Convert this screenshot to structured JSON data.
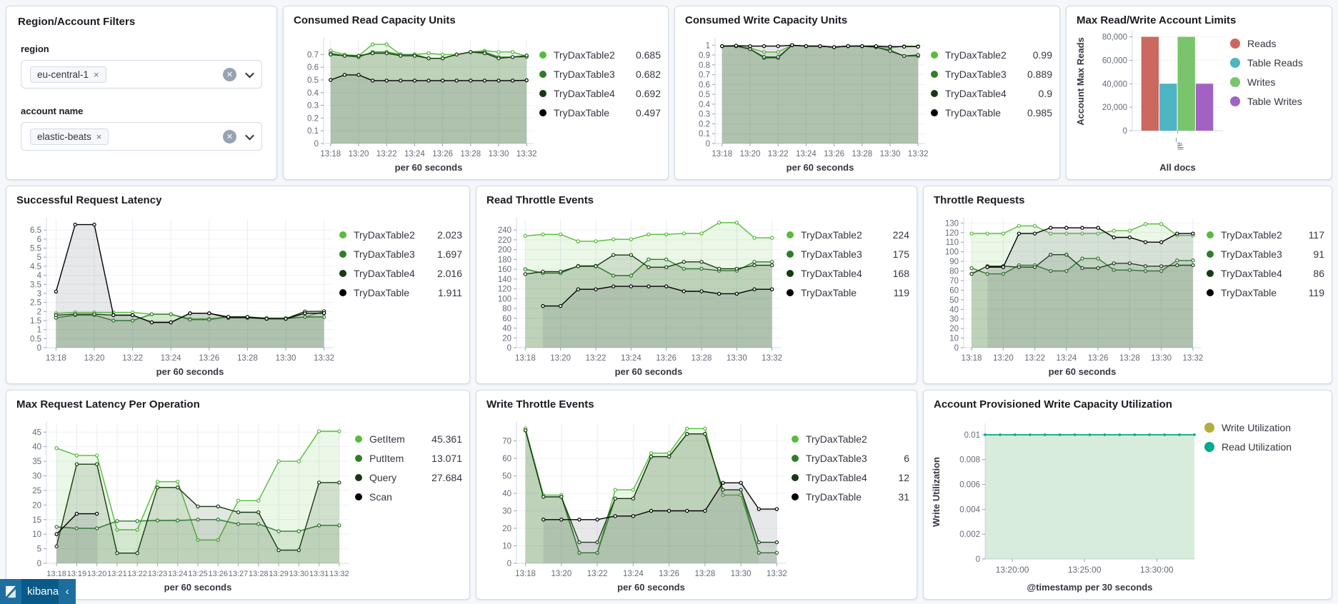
{
  "app": {
    "brand": "kibana",
    "collapse_icon": "‹"
  },
  "icons": {
    "remove": "×",
    "clear": "✕"
  },
  "filters": {
    "title": "Region/Account Filters",
    "fields": [
      {
        "label": "region",
        "value": "eu-central-1"
      },
      {
        "label": "account name",
        "value": "elastic-beats"
      }
    ]
  },
  "chart_data": [
    {
      "type": "line",
      "title": "Consumed Read Capacity Units",
      "xlabel": "per 60 seconds",
      "x": [
        "13:18",
        "13:19",
        "13:20",
        "13:21",
        "13:22",
        "13:23",
        "13:24",
        "13:25",
        "13:26",
        "13:27",
        "13:28",
        "13:29",
        "13:30",
        "13:31",
        "13:32"
      ],
      "x_tick_every": 2,
      "y_ticks": [
        "0",
        "0.1",
        "0.2",
        "0.3",
        "0.4",
        "0.5",
        "0.6",
        "0.7"
      ],
      "y_max": 0.82,
      "grid": true,
      "series": [
        {
          "name": "TryDaxTable2",
          "color": "#57BB3B",
          "legend_value": "0.685",
          "values": [
            0.73,
            0.7,
            0.69,
            0.78,
            0.78,
            0.7,
            0.7,
            0.71,
            0.7,
            0.7,
            0.72,
            0.73,
            0.72,
            0.72,
            0.685
          ]
        },
        {
          "name": "TryDaxTable3",
          "color": "#2F7D2B",
          "legend_value": "0.682",
          "values": [
            0.71,
            0.69,
            0.68,
            0.72,
            0.72,
            0.7,
            0.7,
            0.67,
            0.67,
            0.7,
            0.72,
            0.72,
            0.68,
            0.68,
            0.682
          ]
        },
        {
          "name": "TryDaxTable4",
          "color": "#173A10",
          "legend_value": "0.692",
          "values": [
            0.7,
            0.69,
            0.69,
            0.71,
            0.71,
            0.69,
            0.69,
            0.67,
            0.67,
            0.7,
            0.72,
            0.71,
            0.67,
            0.68,
            0.692
          ]
        },
        {
          "name": "TryDaxTable",
          "color": "#000000",
          "legend_value": "0.497",
          "values": [
            0.5,
            0.54,
            0.54,
            0.495,
            0.495,
            0.495,
            0.495,
            0.495,
            0.495,
            0.495,
            0.495,
            0.495,
            0.495,
            0.495,
            0.497
          ]
        }
      ]
    },
    {
      "type": "line",
      "title": "Consumed Write Capacity Units",
      "xlabel": "per 60 seconds",
      "x": [
        "13:18",
        "13:19",
        "13:20",
        "13:21",
        "13:22",
        "13:23",
        "13:24",
        "13:25",
        "13:26",
        "13:27",
        "13:28",
        "13:29",
        "13:30",
        "13:31",
        "13:32"
      ],
      "x_tick_every": 2,
      "y_ticks": [
        "0",
        "0.1",
        "0.2",
        "0.3",
        "0.4",
        "0.5",
        "0.6",
        "0.7",
        "0.8",
        "0.9",
        "1"
      ],
      "y_max": 1.06,
      "grid": true,
      "series": [
        {
          "name": "TryDaxTable2",
          "color": "#57BB3B",
          "legend_value": "0.99",
          "values": [
            0.99,
            0.99,
            0.97,
            0.93,
            0.93,
            1.0,
            0.99,
            0.99,
            0.98,
            0.99,
            0.99,
            0.99,
            0.97,
            0.99,
            0.99
          ]
        },
        {
          "name": "TryDaxTable3",
          "color": "#2F7D2B",
          "legend_value": "0.889",
          "values": [
            0.99,
            0.99,
            0.96,
            0.87,
            0.87,
            1.0,
            0.99,
            0.99,
            0.98,
            0.99,
            0.99,
            0.98,
            0.95,
            0.89,
            0.889
          ]
        },
        {
          "name": "TryDaxTable4",
          "color": "#173A10",
          "legend_value": "0.9",
          "values": [
            0.99,
            0.99,
            0.96,
            0.88,
            0.88,
            1.0,
            0.99,
            0.99,
            0.98,
            0.99,
            0.99,
            0.98,
            0.94,
            0.89,
            0.9
          ]
        },
        {
          "name": "TryDaxTable",
          "color": "#000000",
          "legend_value": "0.985",
          "values": [
            0.99,
            0.995,
            0.99,
            0.99,
            0.99,
            1.0,
            0.99,
            0.99,
            0.98,
            0.99,
            0.99,
            0.99,
            0.985,
            0.985,
            0.985
          ]
        }
      ]
    },
    {
      "type": "bar",
      "title": "Max Read/Write Account Limits",
      "categories": [
        "_all"
      ],
      "xlabel": "All docs",
      "ylabel": "Account Max Reads",
      "y_ticks": [
        "0",
        "20,000",
        "40,000",
        "60,000",
        "80,000"
      ],
      "y_max": 84000,
      "x_tick_label": "_all",
      "series": [
        {
          "name": "Reads",
          "color": "#CB6960",
          "value": 80000
        },
        {
          "name": "Table Reads",
          "color": "#4CB4C2",
          "value": 40000
        },
        {
          "name": "Writes",
          "color": "#79C56C",
          "value": 80000
        },
        {
          "name": "Table Writes",
          "color": "#A262C4",
          "value": 40000
        }
      ]
    },
    {
      "type": "line",
      "title": "Successful Request Latency",
      "xlabel": "per 60 seconds",
      "x": [
        "13:18",
        "13:19",
        "13:20",
        "13:21",
        "13:22",
        "13:23",
        "13:24",
        "13:25",
        "13:26",
        "13:27",
        "13:28",
        "13:29",
        "13:30",
        "13:31",
        "13:32"
      ],
      "x_tick_every": 2,
      "y_ticks": [
        "0",
        "0.5",
        "1",
        "1.5",
        "2",
        "2.5",
        "3",
        "3.5",
        "4",
        "4.5",
        "5",
        "5.5",
        "6",
        "6.5"
      ],
      "y_max": 7.1,
      "grid": true,
      "series": [
        {
          "name": "TryDaxTable2",
          "color": "#57BB3B",
          "legend_value": "2.023",
          "values": [
            1.9,
            1.95,
            1.95,
            1.95,
            1.95,
            1.85,
            1.85,
            1.6,
            1.6,
            1.7,
            1.7,
            1.65,
            1.65,
            1.7,
            2.0
          ]
        },
        {
          "name": "TryDaxTable3",
          "color": "#2F7D2B",
          "legend_value": "1.697",
          "values": [
            1.65,
            1.8,
            1.8,
            1.5,
            1.5,
            1.85,
            1.85,
            1.55,
            1.55,
            1.7,
            1.7,
            1.6,
            1.6,
            1.7,
            1.697
          ]
        },
        {
          "name": "TryDaxTable4",
          "color": "#173A10",
          "legend_value": "2.016",
          "values": [
            1.8,
            1.85,
            1.85,
            1.8,
            1.8,
            1.4,
            1.4,
            1.9,
            1.9,
            1.65,
            1.65,
            1.6,
            1.6,
            2.0,
            2.016
          ]
        },
        {
          "name": "TryDaxTable",
          "color": "#000000",
          "legend_value": "1.911",
          "values": [
            3.1,
            6.8,
            6.8,
            1.8,
            1.8,
            1.4,
            1.4,
            1.9,
            1.9,
            1.7,
            1.7,
            1.6,
            1.6,
            1.9,
            1.911
          ]
        }
      ]
    },
    {
      "type": "line",
      "title": "Read Throttle Events",
      "xlabel": "per 60 seconds",
      "x": [
        "13:18",
        "13:19",
        "13:20",
        "13:21",
        "13:22",
        "13:23",
        "13:24",
        "13:25",
        "13:26",
        "13:27",
        "13:28",
        "13:29",
        "13:30",
        "13:31",
        "13:32"
      ],
      "x_tick_every": 2,
      "y_ticks": [
        "0",
        "20",
        "40",
        "60",
        "80",
        "100",
        "120",
        "140",
        "160",
        "180",
        "200",
        "220",
        "240"
      ],
      "y_max": 262,
      "grid": true,
      "series": [
        {
          "name": "TryDaxTable2",
          "color": "#57BB3B",
          "legend_value": "224",
          "values": [
            228,
            231,
            231,
            217,
            217,
            221,
            221,
            231,
            231,
            233,
            233,
            255,
            255,
            224,
            224
          ]
        },
        {
          "name": "TryDaxTable3",
          "color": "#2F7D2B",
          "legend_value": "175",
          "values": [
            160,
            152,
            152,
            167,
            167,
            147,
            147,
            180,
            180,
            161,
            161,
            157,
            157,
            175,
            175
          ]
        },
        {
          "name": "TryDaxTable4",
          "color": "#173A10",
          "legend_value": "168",
          "values": [
            150,
            155,
            155,
            166,
            166,
            189,
            189,
            164,
            164,
            175,
            175,
            161,
            161,
            168,
            168
          ]
        },
        {
          "name": "TryDaxTable",
          "color": "#000000",
          "legend_value": "119",
          "values": [
            null,
            85,
            85,
            119,
            119,
            125,
            125,
            125,
            125,
            115,
            115,
            110,
            110,
            119,
            119
          ]
        }
      ]
    },
    {
      "type": "line",
      "title": "Throttle Requests",
      "xlabel": "per 60 seconds",
      "x": [
        "13:18",
        "13:19",
        "13:20",
        "13:21",
        "13:22",
        "13:23",
        "13:24",
        "13:25",
        "13:26",
        "13:27",
        "13:28",
        "13:29",
        "13:30",
        "13:31",
        "13:32"
      ],
      "x_tick_every": 2,
      "y_ticks": [
        "0",
        "10",
        "20",
        "30",
        "40",
        "50",
        "60",
        "70",
        "80",
        "90",
        "100",
        "110",
        "120",
        "130"
      ],
      "y_max": 134,
      "grid": true,
      "series": [
        {
          "name": "TryDaxTable2",
          "color": "#57BB3B",
          "legend_value": "117",
          "values": [
            119,
            119,
            119,
            127,
            127,
            119,
            119,
            119,
            119,
            122,
            122,
            129,
            129,
            117,
            117
          ]
        },
        {
          "name": "TryDaxTable3",
          "color": "#2F7D2B",
          "legend_value": "91",
          "values": [
            83,
            77,
            77,
            86,
            86,
            80,
            80,
            93,
            93,
            81,
            81,
            80,
            80,
            91,
            91
          ]
        },
        {
          "name": "TryDaxTable4",
          "color": "#173A10",
          "legend_value": "86",
          "values": [
            77,
            85,
            85,
            84,
            84,
            97,
            97,
            83,
            83,
            88,
            88,
            85,
            85,
            86,
            86
          ]
        },
        {
          "name": "TryDaxTable",
          "color": "#000000",
          "legend_value": "119",
          "values": [
            null,
            84,
            84,
            119,
            119,
            125,
            125,
            125,
            125,
            115,
            115,
            110,
            110,
            119,
            119
          ]
        }
      ]
    },
    {
      "type": "line",
      "title": "Max Request Latency Per Operation",
      "xlabel": "per 60 seconds",
      "x": [
        "13:18",
        "13:19",
        "13:20",
        "13:21",
        "13:22",
        "13:23",
        "13:24",
        "13:25",
        "13:26",
        "13:27",
        "13:28",
        "13:29",
        "13:30",
        "13:31",
        "13:32"
      ],
      "x_tick_every": 1,
      "y_ticks": [
        "0",
        "5",
        "10",
        "15",
        "20",
        "25",
        "30",
        "35",
        "40",
        "45"
      ],
      "y_max": 48,
      "grid": true,
      "series": [
        {
          "name": "GetItem",
          "color": "#57BB3B",
          "legend_value": "45.361",
          "values": [
            39.5,
            37,
            37,
            11.5,
            11.5,
            28,
            28,
            8,
            8,
            21.5,
            21.5,
            35,
            35,
            45.3,
            45.3
          ]
        },
        {
          "name": "PutItem",
          "color": "#2F7D2B",
          "legend_value": "13.071",
          "values": [
            12.5,
            12,
            12,
            14.5,
            14.5,
            14.7,
            14.7,
            15,
            15,
            13.5,
            13.5,
            11,
            11,
            13,
            13
          ]
        },
        {
          "name": "Query",
          "color": "#173A10",
          "legend_value": "27.684",
          "values": [
            5.8,
            34,
            34,
            3.5,
            3.5,
            26,
            26,
            19.5,
            19.5,
            17.5,
            17.5,
            4.5,
            4.5,
            27.7,
            27.7
          ]
        },
        {
          "name": "Scan",
          "color": "#000000",
          "legend_value": "",
          "values": [
            10,
            17,
            17,
            null,
            null,
            null,
            null,
            null,
            null,
            null,
            null,
            null,
            null,
            null,
            null
          ]
        }
      ]
    },
    {
      "type": "line",
      "title": "Write Throttle Events",
      "xlabel": "per 60 seconds",
      "x": [
        "13:18",
        "13:19",
        "13:20",
        "13:21",
        "13:22",
        "13:23",
        "13:24",
        "13:25",
        "13:26",
        "13:27",
        "13:28",
        "13:29",
        "13:30",
        "13:31",
        "13:32"
      ],
      "x_tick_every": 2,
      "y_ticks": [
        "0",
        "10",
        "20",
        "30",
        "40",
        "50",
        "60",
        "70"
      ],
      "y_max": 80,
      "grid": true,
      "series": [
        {
          "name": "TryDaxTable2",
          "color": "#57BB3B",
          "legend_value": "",
          "values": [
            77,
            39,
            39,
            6,
            6,
            42,
            42,
            63,
            63,
            77,
            77,
            39,
            39,
            6,
            null
          ]
        },
        {
          "name": "TryDaxTable3",
          "color": "#2F7D2B",
          "legend_value": "6",
          "values": [
            76,
            38,
            38,
            6,
            6,
            37,
            37,
            61,
            61,
            74,
            74,
            42,
            42,
            6,
            6
          ]
        },
        {
          "name": "TryDaxTable4",
          "color": "#173A10",
          "legend_value": "12",
          "values": [
            76,
            38,
            38,
            12,
            12,
            37,
            37,
            61,
            61,
            74,
            74,
            42,
            42,
            12,
            12
          ]
        },
        {
          "name": "TryDaxTable",
          "color": "#000000",
          "legend_value": "31",
          "values": [
            null,
            25,
            25,
            25,
            25,
            27,
            27,
            30,
            30,
            30,
            30,
            46,
            46,
            31,
            31
          ]
        }
      ]
    },
    {
      "type": "util",
      "title": "Account Provisioned Write Capacity Utilization",
      "xlabel": "@timestamp per 30 seconds",
      "ylabel": "Write Utilization",
      "y_ticks": [
        "0",
        "0.002",
        "0.004",
        "0.006",
        "0.008",
        "0.01"
      ],
      "y_max": 0.0108,
      "x_ticks": [
        {
          "pos": 0.13,
          "label": "13:20:00"
        },
        {
          "pos": 0.475,
          "label": "13:25:00"
        },
        {
          "pos": 0.82,
          "label": "13:30:00"
        }
      ],
      "series": [
        {
          "name": "Write Utilization",
          "color": "#B3AC3F",
          "legend_value": "",
          "values": [
            0.01,
            0.01,
            0.01,
            0.01,
            0.01,
            0.01,
            0.01,
            0.01,
            0.01,
            0.01,
            0.01,
            0.01,
            0.01,
            0.01,
            0.01
          ]
        },
        {
          "name": "Read Utilization",
          "color": "#00AB8E",
          "legend_value": "",
          "values": [
            0.01,
            0.01,
            0.01,
            0.01,
            0.01,
            0.01,
            0.01,
            0.01,
            0.01,
            0.01,
            0.01,
            0.01,
            0.01,
            0.01,
            0.01
          ]
        }
      ]
    }
  ]
}
